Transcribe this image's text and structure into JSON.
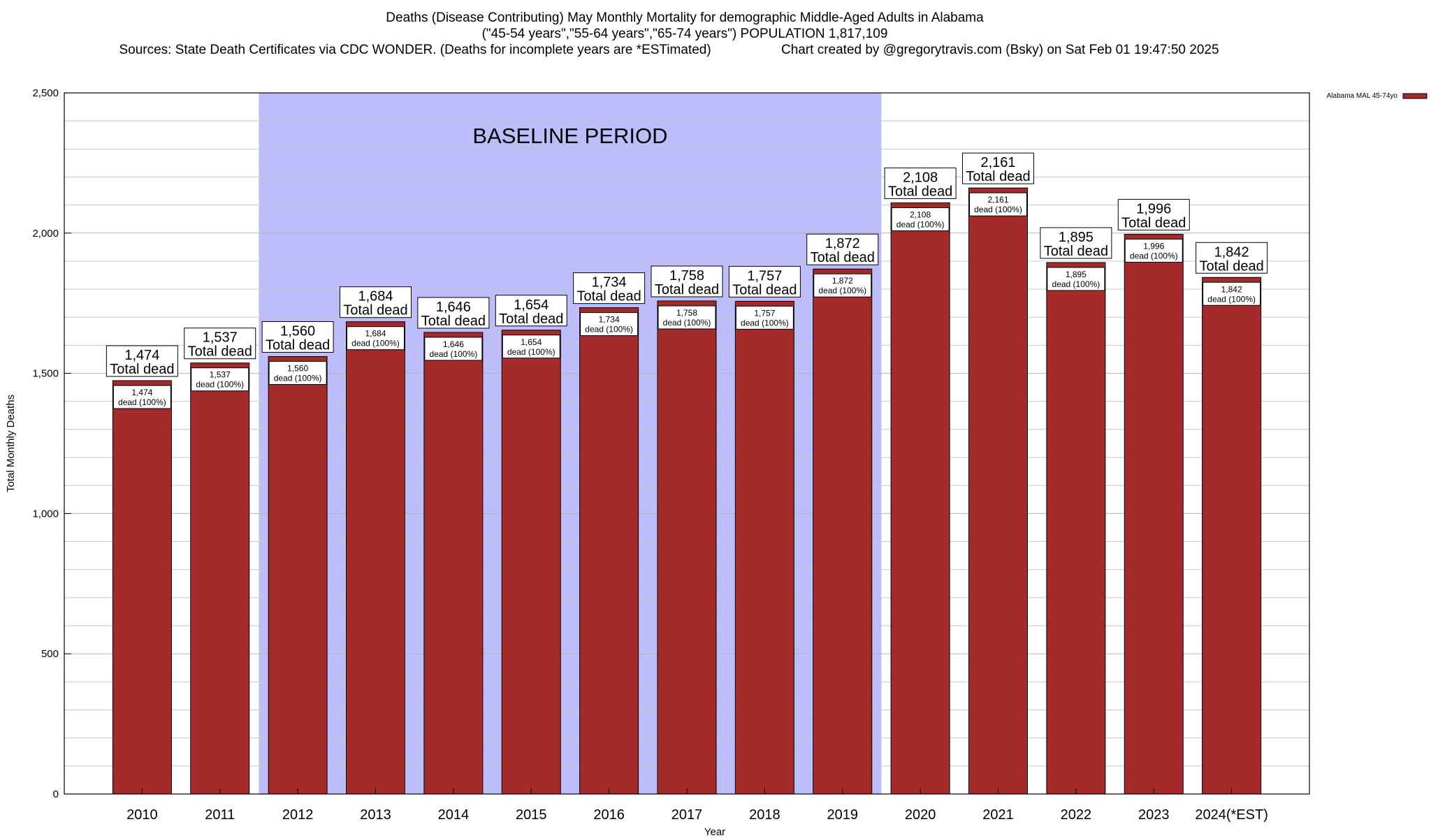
{
  "header": {
    "title": "Deaths (Disease Contributing) May Monthly Mortality for demographic Middle-Aged Adults in Alabama",
    "subtitle": "(\"45-54 years\",\"55-64 years\",\"65-74 years\") POPULATION 1,817,109",
    "sources": "Sources: State Death Certificates via CDC WONDER. (Deaths for incomplete years are *ESTimated)",
    "credit": "Chart created by @gregorytravis.com (Bsky) on Sat Feb 01 19:47:50 2025"
  },
  "colors": {
    "bar": "#a52a2a",
    "baseline_band": "#bdbdfc",
    "grid": "#c8c8c8"
  },
  "chart_data": {
    "type": "bar",
    "title": "Deaths (Disease Contributing) May Monthly Mortality for demographic Middle-Aged Adults in Alabama",
    "xlabel": "Year",
    "ylabel": "Total Monthly Deaths",
    "ylim": [
      0,
      2500
    ],
    "yticks": [
      0,
      500,
      1000,
      1500,
      2000,
      2500
    ],
    "ytick_labels": [
      "0",
      "500",
      "1,000",
      "1,500",
      "2,000",
      "2,500"
    ],
    "grid": true,
    "categories": [
      "2010",
      "2011",
      "2012",
      "2013",
      "2014",
      "2015",
      "2016",
      "2017",
      "2018",
      "2019",
      "2020",
      "2021",
      "2022",
      "2023",
      "2024(*EST)"
    ],
    "series": [
      {
        "name": "Alabama MAL 45-74yo",
        "values": [
          1474,
          1537,
          1560,
          1684,
          1646,
          1654,
          1734,
          1758,
          1757,
          1872,
          2108,
          2161,
          1895,
          1996,
          1842
        ]
      }
    ],
    "value_labels": [
      "1,474",
      "1,537",
      "1,560",
      "1,684",
      "1,646",
      "1,654",
      "1,734",
      "1,758",
      "1,757",
      "1,872",
      "2,108",
      "2,161",
      "1,895",
      "1,996",
      "1,842"
    ],
    "top_label_suffix": "Total dead",
    "inner_label_suffix": "dead (100%)",
    "baseline_period": {
      "label": "BASELINE PERIOD",
      "from": "2012",
      "to": "2019"
    },
    "legend": {
      "label": "Alabama MAL 45-74yo",
      "position": "top-right-outside"
    }
  }
}
